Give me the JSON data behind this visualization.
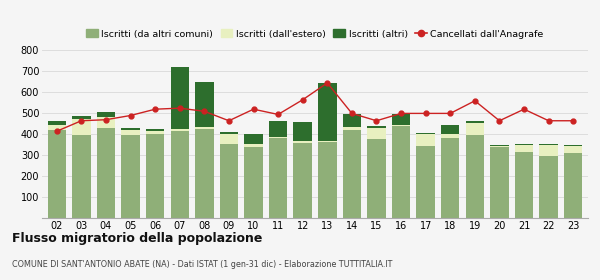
{
  "years": [
    "02",
    "03",
    "04",
    "05",
    "06",
    "07",
    "08",
    "09",
    "10",
    "11",
    "12",
    "13",
    "14",
    "15",
    "16",
    "17",
    "18",
    "19",
    "20",
    "21",
    "22",
    "23"
  ],
  "iscritti_altri_comuni": [
    420,
    395,
    430,
    395,
    400,
    415,
    425,
    355,
    340,
    385,
    360,
    365,
    420,
    380,
    440,
    345,
    385,
    395,
    340,
    315,
    295,
    310
  ],
  "iscritti_estero": [
    25,
    80,
    55,
    25,
    15,
    10,
    10,
    45,
    15,
    5,
    10,
    5,
    15,
    50,
    5,
    55,
    15,
    60,
    5,
    35,
    55,
    35
  ],
  "iscritti_altri": [
    20,
    15,
    20,
    10,
    10,
    295,
    215,
    10,
    45,
    75,
    90,
    275,
    60,
    10,
    50,
    5,
    45,
    10,
    5,
    5,
    5,
    5
  ],
  "cancellati": [
    415,
    465,
    470,
    490,
    520,
    525,
    510,
    465,
    520,
    495,
    565,
    645,
    500,
    465,
    500,
    500,
    500,
    560,
    465,
    520,
    465,
    465
  ],
  "legend_labels": [
    "Iscritti (da altri comuni)",
    "Iscritti (dall'estero)",
    "Iscritti (altri)",
    "Cancellati dall'Anagrafe"
  ],
  "colors_bar": [
    "#8faf78",
    "#e8f0c0",
    "#2d6e2d",
    "#cc2222"
  ],
  "color_line": "#cc2222",
  "ylim": [
    0,
    800
  ],
  "yticks": [
    0,
    100,
    200,
    300,
    400,
    500,
    600,
    700,
    800
  ],
  "title": "Flusso migratorio della popolazione",
  "subtitle": "COMUNE DI SANT'ANTONIO ABATE (NA) - Dati ISTAT (1 gen-31 dic) - Elaborazione TUTTITALIA.IT",
  "bg_color": "#f5f5f5",
  "grid_color": "#dddddd"
}
